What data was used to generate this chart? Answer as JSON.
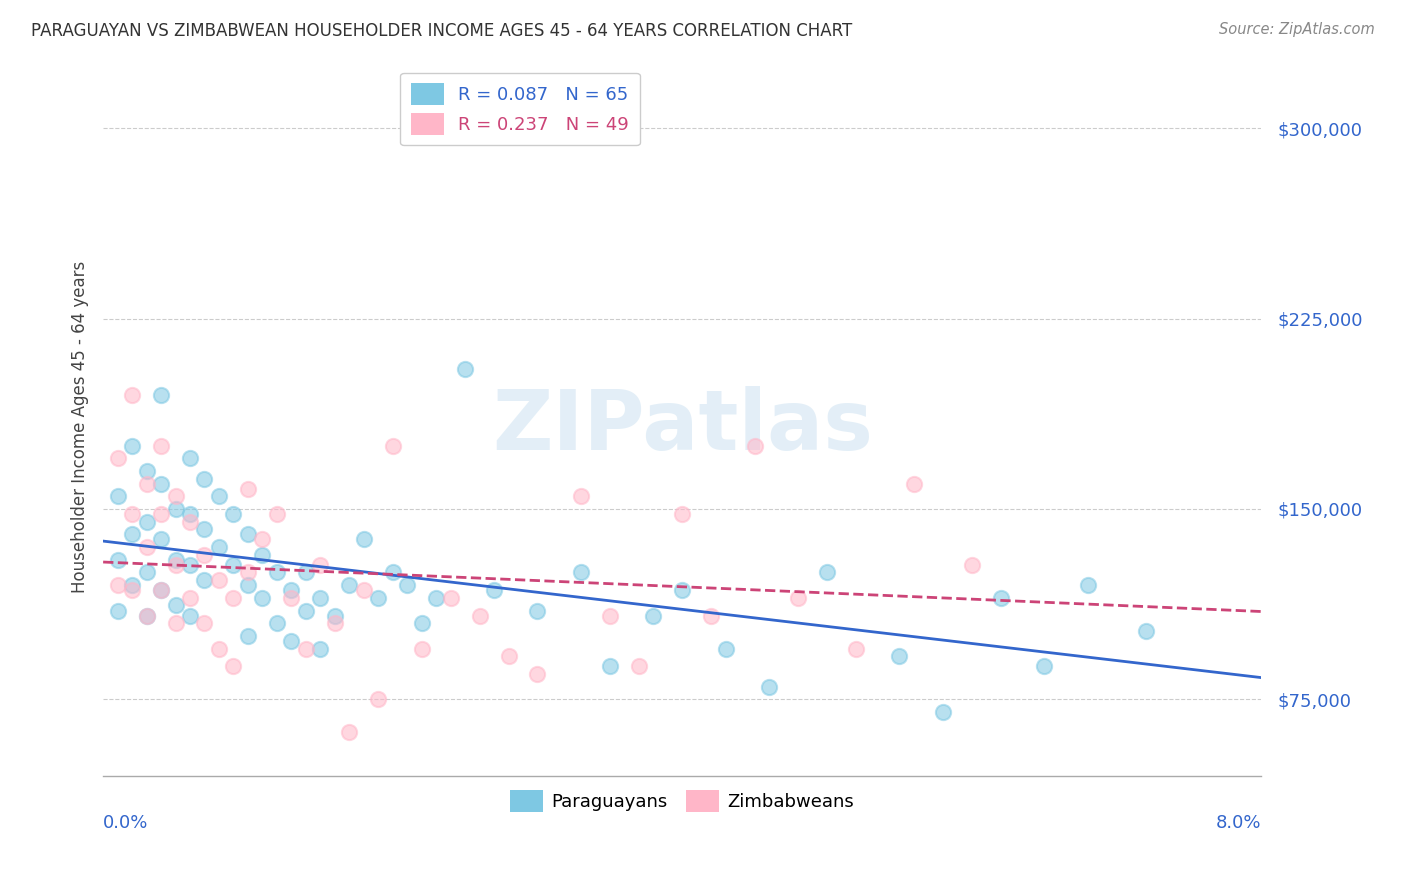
{
  "title": "PARAGUAYAN VS ZIMBABWEAN HOUSEHOLDER INCOME AGES 45 - 64 YEARS CORRELATION CHART",
  "source": "Source: ZipAtlas.com",
  "ylabel": "Householder Income Ages 45 - 64 years",
  "xmin": 0.0,
  "xmax": 0.08,
  "ymin": 45000,
  "ymax": 320000,
  "yticks": [
    75000,
    150000,
    225000,
    300000
  ],
  "ytick_labels": [
    "$75,000",
    "$150,000",
    "$225,000",
    "$300,000"
  ],
  "legend_r1": "R = 0.087   N = 65",
  "legend_r2": "R = 0.237   N = 49",
  "paraguayan_color": "#7ec8e3",
  "zimbabwean_color": "#ffb6c8",
  "trend_paraguayan_color": "#3366cc",
  "trend_zimbabwean_color": "#cc4477",
  "trend_zim_dashed_color": "#cc4477",
  "background_color": "#ffffff",
  "watermark": "ZIPatlas",
  "paraguayan_x": [
    0.001,
    0.001,
    0.001,
    0.002,
    0.002,
    0.002,
    0.003,
    0.003,
    0.003,
    0.003,
    0.004,
    0.004,
    0.004,
    0.004,
    0.005,
    0.005,
    0.005,
    0.006,
    0.006,
    0.006,
    0.006,
    0.007,
    0.007,
    0.007,
    0.008,
    0.008,
    0.009,
    0.009,
    0.01,
    0.01,
    0.01,
    0.011,
    0.011,
    0.012,
    0.012,
    0.013,
    0.013,
    0.014,
    0.014,
    0.015,
    0.015,
    0.016,
    0.017,
    0.018,
    0.019,
    0.02,
    0.021,
    0.022,
    0.023,
    0.025,
    0.027,
    0.03,
    0.033,
    0.035,
    0.038,
    0.04,
    0.043,
    0.046,
    0.05,
    0.055,
    0.058,
    0.062,
    0.065,
    0.068,
    0.072
  ],
  "paraguayan_y": [
    130000,
    155000,
    110000,
    175000,
    140000,
    120000,
    165000,
    145000,
    125000,
    108000,
    195000,
    160000,
    138000,
    118000,
    150000,
    130000,
    112000,
    170000,
    148000,
    128000,
    108000,
    162000,
    142000,
    122000,
    155000,
    135000,
    148000,
    128000,
    140000,
    120000,
    100000,
    132000,
    115000,
    125000,
    105000,
    118000,
    98000,
    110000,
    125000,
    115000,
    95000,
    108000,
    120000,
    138000,
    115000,
    125000,
    120000,
    105000,
    115000,
    205000,
    118000,
    110000,
    125000,
    88000,
    108000,
    118000,
    95000,
    80000,
    125000,
    92000,
    70000,
    115000,
    88000,
    120000,
    102000
  ],
  "zimbabwean_x": [
    0.001,
    0.001,
    0.002,
    0.002,
    0.002,
    0.003,
    0.003,
    0.003,
    0.004,
    0.004,
    0.004,
    0.005,
    0.005,
    0.005,
    0.006,
    0.006,
    0.007,
    0.007,
    0.008,
    0.008,
    0.009,
    0.009,
    0.01,
    0.01,
    0.011,
    0.012,
    0.013,
    0.014,
    0.015,
    0.016,
    0.017,
    0.018,
    0.019,
    0.02,
    0.022,
    0.024,
    0.026,
    0.028,
    0.03,
    0.033,
    0.035,
    0.037,
    0.04,
    0.042,
    0.045,
    0.048,
    0.052,
    0.056,
    0.06
  ],
  "zimbabwean_y": [
    170000,
    120000,
    195000,
    148000,
    118000,
    160000,
    135000,
    108000,
    175000,
    148000,
    118000,
    155000,
    128000,
    105000,
    145000,
    115000,
    132000,
    105000,
    122000,
    95000,
    115000,
    88000,
    158000,
    125000,
    138000,
    148000,
    115000,
    95000,
    128000,
    105000,
    62000,
    118000,
    75000,
    175000,
    95000,
    115000,
    108000,
    92000,
    85000,
    155000,
    108000,
    88000,
    148000,
    108000,
    175000,
    115000,
    95000,
    160000,
    128000
  ]
}
